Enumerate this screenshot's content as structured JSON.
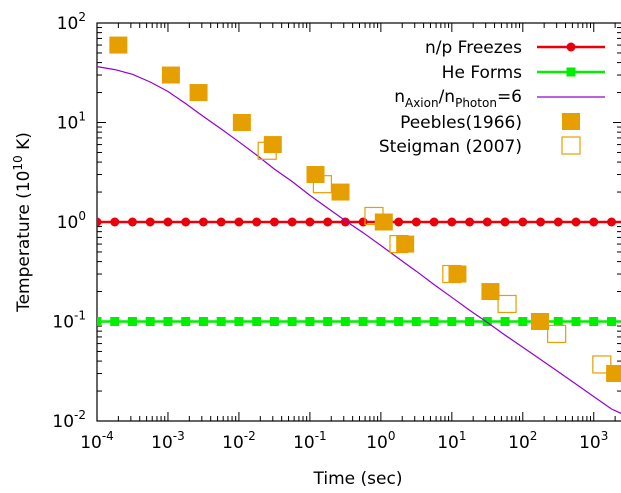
{
  "chart_data": {
    "type": "scatter",
    "title": "",
    "xlabel": "Time (sec)",
    "ylabel": "Temperature (10^10 K)",
    "ylabel_parts": {
      "pre": "Temperature (10",
      "sup": "10",
      "post": " K)"
    },
    "xscale": "log",
    "yscale": "log",
    "xlim": [
      0.0001,
      2500
    ],
    "ylim": [
      0.01,
      100
    ],
    "grid": false,
    "legend_position": "top-right",
    "x_ticks": [
      {
        "base": "10",
        "exp": "-4",
        "value": 0.0001
      },
      {
        "base": "10",
        "exp": "-3",
        "value": 0.001
      },
      {
        "base": "10",
        "exp": "-2",
        "value": 0.01
      },
      {
        "base": "10",
        "exp": "-1",
        "value": 0.1
      },
      {
        "base": "10",
        "exp": "0",
        "value": 1
      },
      {
        "base": "10",
        "exp": "1",
        "value": 10
      },
      {
        "base": "10",
        "exp": "2",
        "value": 100
      },
      {
        "base": "10",
        "exp": "3",
        "value": 1000
      }
    ],
    "y_ticks": [
      {
        "base": "10",
        "exp": "-2",
        "value": 0.01
      },
      {
        "base": "10",
        "exp": "-1",
        "value": 0.1
      },
      {
        "base": "10",
        "exp": "0",
        "value": 1
      },
      {
        "base": "10",
        "exp": "1",
        "value": 10
      },
      {
        "base": "10",
        "exp": "2",
        "value": 100
      }
    ],
    "series": [
      {
        "name": "n/p Freezes",
        "kind": "hline",
        "color": "#e8000b",
        "marker": "circle",
        "y": 1.0,
        "x": [
          0.0001,
          0.000178,
          0.000316,
          0.000562,
          0.001,
          0.00178,
          0.00316,
          0.00562,
          0.01,
          0.0178,
          0.0316,
          0.0562,
          0.1,
          0.178,
          0.316,
          0.562,
          1,
          1.78,
          3.16,
          5.62,
          10,
          17.8,
          31.6,
          56.2,
          100,
          178,
          316,
          562,
          1000,
          1780
        ]
      },
      {
        "name": "He Forms",
        "kind": "hline",
        "color": "#00ee00",
        "marker": "square",
        "y": 0.1,
        "x": [
          0.0001,
          0.000178,
          0.000316,
          0.000562,
          0.001,
          0.00178,
          0.00316,
          0.00562,
          0.01,
          0.0178,
          0.0316,
          0.0562,
          0.1,
          0.178,
          0.316,
          0.562,
          1,
          1.78,
          3.16,
          5.62,
          10,
          17.8,
          31.6,
          56.2,
          100,
          178,
          316,
          562,
          1000,
          1780
        ]
      },
      {
        "name_parts": {
          "n1": "n",
          "s1": "Axion",
          "mid": "/n",
          "s2": "Photon",
          "post": "=6"
        },
        "kind": "curve",
        "color": "#9400d3",
        "x": [
          0.0001,
          0.000178,
          0.000316,
          0.000562,
          0.001,
          0.00178,
          0.00316,
          0.00562,
          0.01,
          0.0178,
          0.0316,
          0.0562,
          0.1,
          0.178,
          0.316,
          0.562,
          1,
          1.78,
          3.16,
          5.62,
          10,
          17.8,
          31.6,
          56.2,
          100,
          178,
          316,
          562,
          1000,
          1780,
          2500
        ],
        "y": [
          36.5,
          34,
          30.5,
          25.5,
          20.5,
          15.5,
          11.5,
          8.6,
          6.4,
          4.7,
          3.4,
          2.55,
          1.85,
          1.38,
          1.03,
          0.78,
          0.58,
          0.43,
          0.32,
          0.235,
          0.175,
          0.13,
          0.098,
          0.073,
          0.055,
          0.0415,
          0.0312,
          0.0235,
          0.0176,
          0.0132,
          0.0118
        ]
      },
      {
        "name": "Peebles(1966)",
        "kind": "points",
        "color": "#e69f00",
        "marker": "filled-square",
        "x": [
          0.0002,
          0.0011,
          0.0027,
          0.011,
          0.03,
          0.12,
          0.27,
          1.1,
          2.2,
          12,
          35,
          175,
          2000
        ],
        "y": [
          60,
          30,
          20,
          10,
          6,
          3,
          2,
          1,
          0.6,
          0.3,
          0.2,
          0.1,
          0.03
        ]
      },
      {
        "name": "Steigman (2007)",
        "kind": "points",
        "color": "#e69f00",
        "marker": "open-square",
        "x": [
          0.025,
          0.15,
          0.8,
          1.8,
          10,
          60,
          300,
          1300
        ],
        "y": [
          5.2,
          2.4,
          1.15,
          0.6,
          0.3,
          0.15,
          0.075,
          0.037
        ]
      }
    ]
  }
}
